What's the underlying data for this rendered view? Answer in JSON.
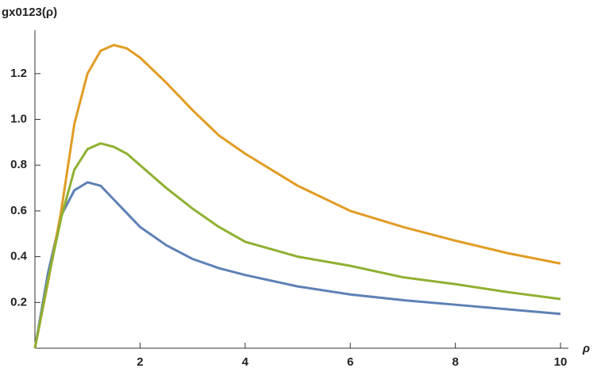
{
  "chart_data": {
    "type": "line",
    "y_label": "gx0123(ρ)",
    "x_label": "ρ",
    "x": [
      0,
      0.25,
      0.5,
      0.75,
      1,
      1.25,
      1.5,
      1.75,
      2,
      2.5,
      3,
      3.5,
      4,
      5,
      6,
      7,
      8,
      9,
      10
    ],
    "series": [
      {
        "color": "#5e81b5",
        "values": [
          0,
          0.33,
          0.58,
          0.69,
          0.725,
          0.71,
          0.65,
          0.59,
          0.53,
          0.45,
          0.39,
          0.35,
          0.32,
          0.27,
          0.235,
          0.21,
          0.19,
          0.17,
          0.15
        ]
      },
      {
        "color": "#e19c24",
        "values": [
          0,
          0.29,
          0.6,
          0.98,
          1.2,
          1.3,
          1.325,
          1.31,
          1.27,
          1.16,
          1.04,
          0.93,
          0.85,
          0.71,
          0.6,
          0.53,
          0.47,
          0.415,
          0.37
        ]
      },
      {
        "color": "#8fb032",
        "values": [
          0,
          0.3,
          0.57,
          0.78,
          0.87,
          0.895,
          0.88,
          0.85,
          0.8,
          0.7,
          0.61,
          0.53,
          0.465,
          0.4,
          0.36,
          0.31,
          0.28,
          0.245,
          0.215
        ]
      }
    ],
    "xlim": [
      0,
      10.15
    ],
    "ylim": [
      0,
      1.39
    ],
    "xticks": [
      2,
      4,
      6,
      8,
      10
    ],
    "yticks": [
      0.2,
      0.4,
      0.6,
      0.8,
      {
        "value": 1.0,
        "label": "1.0"
      },
      1.2
    ]
  }
}
